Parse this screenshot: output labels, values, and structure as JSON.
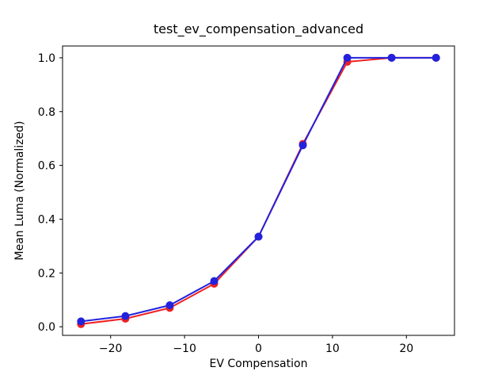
{
  "figure": {
    "background": "#ffffff",
    "spine_color": "#000000"
  },
  "chart_data": {
    "type": "line",
    "title": "test_ev_compensation_advanced",
    "xlabel": "EV Compensation",
    "ylabel": "Mean Luma (Normalized)",
    "x": [
      -24,
      -18,
      -12,
      -6,
      0,
      6,
      12,
      18,
      24
    ],
    "series": [
      {
        "name": "red-series",
        "color": "#ee2222",
        "marker": "circle",
        "values": [
          0.01,
          0.03,
          0.07,
          0.16,
          0.335,
          0.68,
          0.985,
          1.0,
          1.0
        ]
      },
      {
        "name": "blue-series",
        "color": "#2222dd",
        "marker": "circle",
        "values": [
          0.02,
          0.04,
          0.08,
          0.17,
          0.335,
          0.675,
          1.0,
          1.0,
          1.0
        ]
      }
    ],
    "xlim": [
      -26.5,
      26.5
    ],
    "ylim": [
      -0.032,
      1.044
    ],
    "xticks": {
      "values": [
        -20,
        -10,
        0,
        10,
        20
      ],
      "labels": [
        "−20",
        "−10",
        "0",
        "10",
        "20"
      ]
    },
    "yticks": {
      "values": [
        0.0,
        0.2,
        0.4,
        0.6,
        0.8,
        1.0
      ],
      "labels": [
        "0.0",
        "0.2",
        "0.4",
        "0.6",
        "0.8",
        "1.0"
      ]
    },
    "grid": false,
    "legend": "none"
  }
}
